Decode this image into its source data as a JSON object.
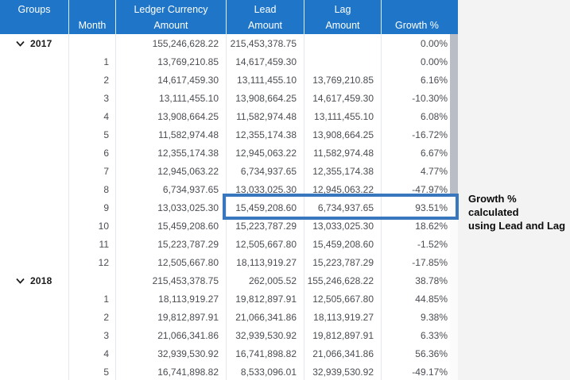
{
  "colors": {
    "header_bg": "#1F76C8",
    "highlight_border": "#3877BE",
    "scrollbar_thumb": "#B9BEC6",
    "page_bg": "#F3F3F3",
    "body_text": "#4A4D52",
    "group_text": "#1B1B1B"
  },
  "annotation": {
    "line1": "Growth % calculated",
    "line2": "using Lead and Lag"
  },
  "table": {
    "header": {
      "columns": [
        {
          "id": "groups",
          "line1": "Groups",
          "line2": ""
        },
        {
          "id": "month",
          "line1": "",
          "line2": "Month"
        },
        {
          "id": "ledger",
          "line1": "Ledger Currency",
          "line2": "Amount"
        },
        {
          "id": "lead",
          "line1": "Lead",
          "line2": "Amount"
        },
        {
          "id": "lag",
          "line1": "Lag",
          "line2": "Amount"
        },
        {
          "id": "growth",
          "line1": "",
          "line2": "Growth %"
        }
      ]
    },
    "rows": [
      {
        "type": "group",
        "label": "2017",
        "month": "",
        "ledger": "155,246,628.22",
        "lead": "215,453,378.75",
        "lag": "",
        "growth": "0.00%",
        "highlight": false
      },
      {
        "type": "month",
        "label": "",
        "month": "1",
        "ledger": "13,769,210.85",
        "lead": "14,617,459.30",
        "lag": "",
        "growth": "0.00%",
        "highlight": false
      },
      {
        "type": "month",
        "label": "",
        "month": "2",
        "ledger": "14,617,459.30",
        "lead": "13,111,455.10",
        "lag": "13,769,210.85",
        "growth": "6.16%",
        "highlight": false
      },
      {
        "type": "month",
        "label": "",
        "month": "3",
        "ledger": "13,111,455.10",
        "lead": "13,908,664.25",
        "lag": "14,617,459.30",
        "growth": "-10.30%",
        "highlight": false
      },
      {
        "type": "month",
        "label": "",
        "month": "4",
        "ledger": "13,908,664.25",
        "lead": "11,582,974.48",
        "lag": "13,111,455.10",
        "growth": "6.08%",
        "highlight": false
      },
      {
        "type": "month",
        "label": "",
        "month": "5",
        "ledger": "11,582,974.48",
        "lead": "12,355,174.38",
        "lag": "13,908,664.25",
        "growth": "-16.72%",
        "highlight": false
      },
      {
        "type": "month",
        "label": "",
        "month": "6",
        "ledger": "12,355,174.38",
        "lead": "12,945,063.22",
        "lag": "11,582,974.48",
        "growth": "6.67%",
        "highlight": false
      },
      {
        "type": "month",
        "label": "",
        "month": "7",
        "ledger": "12,945,063.22",
        "lead": "6,734,937.65",
        "lag": "12,355,174.38",
        "growth": "4.77%",
        "highlight": false
      },
      {
        "type": "month",
        "label": "",
        "month": "8",
        "ledger": "6,734,937.65",
        "lead": "13,033,025.30",
        "lag": "12,945,063.22",
        "growth": "-47.97%",
        "highlight": false
      },
      {
        "type": "month",
        "label": "",
        "month": "9",
        "ledger": "13,033,025.30",
        "lead": "15,459,208.60",
        "lag": "6,734,937.65",
        "growth": "93.51%",
        "highlight": true
      },
      {
        "type": "month",
        "label": "",
        "month": "10",
        "ledger": "15,459,208.60",
        "lead": "15,223,787.29",
        "lag": "13,033,025.30",
        "growth": "18.62%",
        "highlight": false
      },
      {
        "type": "month",
        "label": "",
        "month": "11",
        "ledger": "15,223,787.29",
        "lead": "12,505,667.80",
        "lag": "15,459,208.60",
        "growth": "-1.52%",
        "highlight": false
      },
      {
        "type": "month",
        "label": "",
        "month": "12",
        "ledger": "12,505,667.80",
        "lead": "18,113,919.27",
        "lag": "15,223,787.29",
        "growth": "-17.85%",
        "highlight": false
      },
      {
        "type": "group",
        "label": "2018",
        "month": "",
        "ledger": "215,453,378.75",
        "lead": "262,005.52",
        "lag": "155,246,628.22",
        "growth": "38.78%",
        "highlight": false
      },
      {
        "type": "month",
        "label": "",
        "month": "1",
        "ledger": "18,113,919.27",
        "lead": "19,812,897.91",
        "lag": "12,505,667.80",
        "growth": "44.85%",
        "highlight": false
      },
      {
        "type": "month",
        "label": "",
        "month": "2",
        "ledger": "19,812,897.91",
        "lead": "21,066,341.86",
        "lag": "18,113,919.27",
        "growth": "9.38%",
        "highlight": false
      },
      {
        "type": "month",
        "label": "",
        "month": "3",
        "ledger": "21,066,341.86",
        "lead": "32,939,530.92",
        "lag": "19,812,897.91",
        "growth": "6.33%",
        "highlight": false
      },
      {
        "type": "month",
        "label": "",
        "month": "4",
        "ledger": "32,939,530.92",
        "lead": "16,741,898.82",
        "lag": "21,066,341.86",
        "growth": "56.36%",
        "highlight": false
      },
      {
        "type": "month",
        "label": "",
        "month": "5",
        "ledger": "16,741,898.82",
        "lead": "8,533,096.01",
        "lag": "32,939,530.92",
        "growth": "-49.17%",
        "highlight": false
      }
    ]
  }
}
